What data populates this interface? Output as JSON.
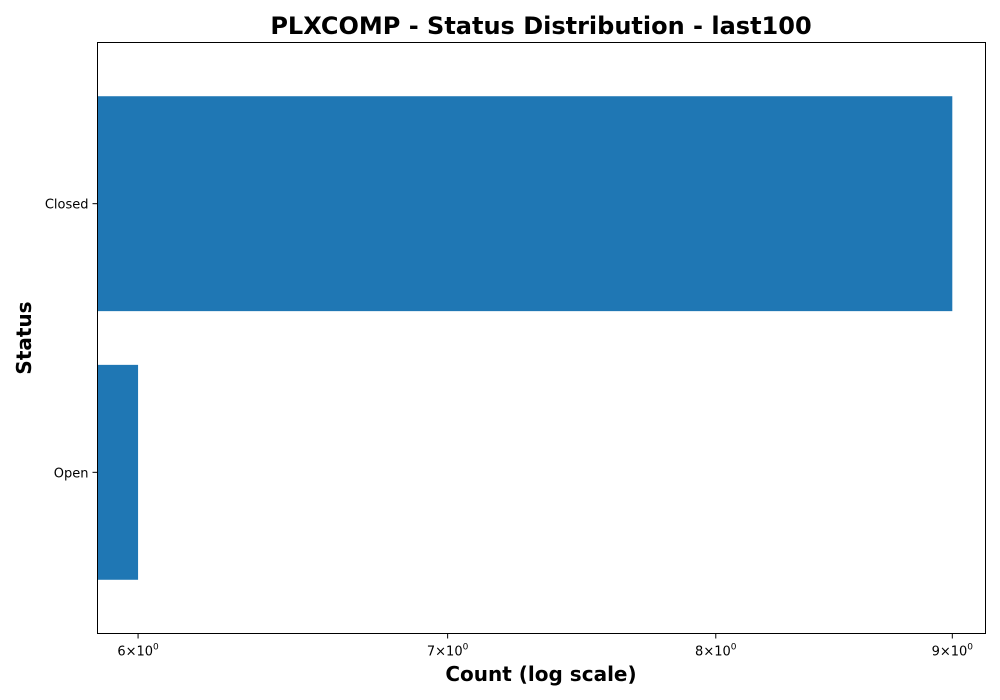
{
  "chart_data": {
    "type": "bar",
    "orientation": "horizontal",
    "title": "PLXCOMP - Status Distribution - last100",
    "xlabel": "Count (log scale)",
    "ylabel": "Status",
    "x_scale": "log",
    "xlim": [
      5.88,
      9.15
    ],
    "categories": [
      "Closed",
      "Open"
    ],
    "values": [
      9,
      6
    ],
    "bar_color": "#1f77b4",
    "x_ticks": [
      {
        "value": 6,
        "mantissa": "6",
        "times": "×",
        "base": "10",
        "exp": "0"
      },
      {
        "value": 7,
        "mantissa": "7",
        "times": "×",
        "base": "10",
        "exp": "0"
      },
      {
        "value": 8,
        "mantissa": "8",
        "times": "×",
        "base": "10",
        "exp": "0"
      },
      {
        "value": 9,
        "mantissa": "9",
        "times": "×",
        "base": "10",
        "exp": "0"
      }
    ],
    "grid": false,
    "legend": "none"
  }
}
